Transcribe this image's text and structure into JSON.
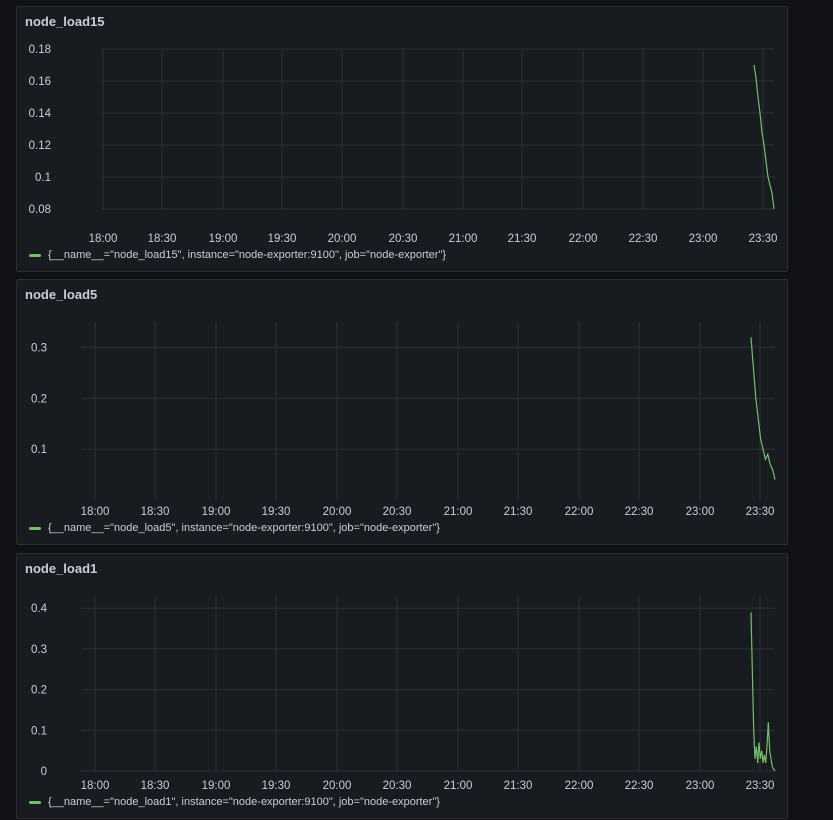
{
  "colors": {
    "series": "#73bf69",
    "panel_bg": "#181b1f",
    "page_bg": "#111217",
    "text": "#ccccdc"
  },
  "chart_data": [
    {
      "type": "line",
      "title": "node_load15",
      "x_ticks": [
        "18:00",
        "18:30",
        "19:00",
        "19:30",
        "20:00",
        "20:30",
        "21:00",
        "21:30",
        "22:00",
        "22:30",
        "23:00",
        "23:30"
      ],
      "xlim": [
        "17:46",
        "23:48"
      ],
      "y_ticks": [
        "0.08",
        "0.1",
        "0.12",
        "0.14",
        "0.16",
        "0.18"
      ],
      "ylim": [
        0.08,
        0.18
      ],
      "grid": true,
      "legend_position": "bottom-left",
      "series": [
        {
          "name": "{__name__=\"node_load15\", instance=\"node-exporter:9100\", job=\"node-exporter\"}",
          "points": [
            [
              "23:25",
              0.17
            ],
            [
              "23:26",
              0.162
            ],
            [
              "23:27",
              0.15
            ],
            [
              "23:28",
              0.14
            ],
            [
              "23:29",
              0.128
            ],
            [
              "23:30",
              0.12
            ],
            [
              "23:31",
              0.11
            ],
            [
              "23:32",
              0.1
            ],
            [
              "23:33",
              0.095
            ],
            [
              "23:34",
              0.09
            ],
            [
              "23:35",
              0.08
            ]
          ]
        }
      ]
    },
    {
      "type": "line",
      "title": "node_load5",
      "x_ticks": [
        "18:00",
        "18:30",
        "19:00",
        "19:30",
        "20:00",
        "20:30",
        "21:00",
        "21:30",
        "22:00",
        "22:30",
        "23:00",
        "23:30"
      ],
      "xlim": [
        "17:50",
        "23:38"
      ],
      "y_ticks": [
        "0.1",
        "0.2",
        "0.3"
      ],
      "ylim": [
        0.0,
        0.35
      ],
      "grid": true,
      "legend_position": "bottom-left",
      "series": [
        {
          "name": "{__name__=\"node_load5\", instance=\"node-exporter:9100\", job=\"node-exporter\"}",
          "points": [
            [
              "23:25",
              0.32
            ],
            [
              "23:26",
              0.26
            ],
            [
              "23:27",
              0.2
            ],
            [
              "23:28",
              0.16
            ],
            [
              "23:29",
              0.12
            ],
            [
              "23:30",
              0.1
            ],
            [
              "23:31",
              0.08
            ],
            [
              "23:32",
              0.09
            ],
            [
              "23:33",
              0.07
            ],
            [
              "23:34",
              0.06
            ],
            [
              "23:35",
              0.04
            ]
          ]
        }
      ]
    },
    {
      "type": "line",
      "title": "node_load1",
      "x_ticks": [
        "18:00",
        "18:30",
        "19:00",
        "19:30",
        "20:00",
        "20:30",
        "21:00",
        "21:30",
        "22:00",
        "22:30",
        "23:00",
        "23:30"
      ],
      "xlim": [
        "17:50",
        "23:38"
      ],
      "y_ticks": [
        "0",
        "0.1",
        "0.2",
        "0.3",
        "0.4"
      ],
      "ylim": [
        0.0,
        0.43
      ],
      "grid": true,
      "legend_position": "bottom-left",
      "series": [
        {
          "name": "{__name__=\"node_load1\", instance=\"node-exporter:9100\", job=\"node-exporter\"}",
          "points": [
            [
              "23:25",
              0.39
            ],
            [
              "23:25.5",
              0.25
            ],
            [
              "23:26",
              0.1
            ],
            [
              "23:26.5",
              0.03
            ],
            [
              "23:27",
              0.06
            ],
            [
              "23:27.5",
              0.02
            ],
            [
              "23:28",
              0.07
            ],
            [
              "23:28.5",
              0.03
            ],
            [
              "23:29",
              0.05
            ],
            [
              "23:29.5",
              0.02
            ],
            [
              "23:30",
              0.04
            ],
            [
              "23:30.5",
              0.02
            ],
            [
              "23:31",
              0.06
            ],
            [
              "23:31.5",
              0.12
            ],
            [
              "23:32",
              0.05
            ],
            [
              "23:32.5",
              0.03
            ],
            [
              "23:33",
              0.01
            ],
            [
              "23:33.5",
              0.005
            ],
            [
              "23:34",
              0.0
            ]
          ]
        }
      ]
    }
  ]
}
